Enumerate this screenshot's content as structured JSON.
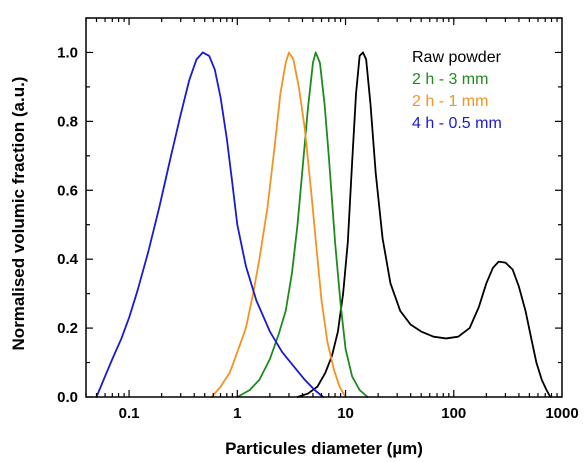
{
  "chart_data": {
    "type": "line",
    "xlabel": "Particules diameter (µm)",
    "ylabel": "Normalised volumic fraction  (a.u.)",
    "xscale": "log",
    "xlim": [
      0.04,
      1000
    ],
    "ylim": [
      0,
      1.1
    ],
    "x_ticks": [
      {
        "value": 0.1,
        "label": "0.1"
      },
      {
        "value": 1,
        "label": "1"
      },
      {
        "value": 10,
        "label": "10"
      },
      {
        "value": 100,
        "label": "100"
      },
      {
        "value": 1000,
        "label": "1000"
      }
    ],
    "y_ticks": [
      {
        "value": 0.0,
        "label": "0.0"
      },
      {
        "value": 0.2,
        "label": "0.2"
      },
      {
        "value": 0.4,
        "label": "0.4"
      },
      {
        "value": 0.6,
        "label": "0.6"
      },
      {
        "value": 0.8,
        "label": "0.8"
      },
      {
        "value": 1.0,
        "label": "1.0"
      }
    ],
    "legend_position": "top-right",
    "grid": false,
    "series": [
      {
        "name": "Raw powder",
        "color": "#000000",
        "points": [
          [
            3.6,
            0.0
          ],
          [
            4.5,
            0.01
          ],
          [
            5.5,
            0.03
          ],
          [
            6.5,
            0.07
          ],
          [
            7.5,
            0.12
          ],
          [
            8.5,
            0.19
          ],
          [
            9.5,
            0.3
          ],
          [
            10.5,
            0.45
          ],
          [
            11.5,
            0.68
          ],
          [
            12.5,
            0.88
          ],
          [
            13.5,
            0.99
          ],
          [
            14.5,
            1.0
          ],
          [
            15.5,
            0.98
          ],
          [
            17,
            0.85
          ],
          [
            19,
            0.65
          ],
          [
            22,
            0.46
          ],
          [
            26,
            0.33
          ],
          [
            32,
            0.25
          ],
          [
            40,
            0.21
          ],
          [
            50,
            0.19
          ],
          [
            65,
            0.175
          ],
          [
            85,
            0.17
          ],
          [
            110,
            0.175
          ],
          [
            140,
            0.2
          ],
          [
            170,
            0.26
          ],
          [
            200,
            0.33
          ],
          [
            230,
            0.375
          ],
          [
            260,
            0.393
          ],
          [
            300,
            0.39
          ],
          [
            350,
            0.37
          ],
          [
            400,
            0.32
          ],
          [
            460,
            0.25
          ],
          [
            520,
            0.17
          ],
          [
            580,
            0.1
          ],
          [
            650,
            0.05
          ],
          [
            720,
            0.02
          ],
          [
            780,
            0.0
          ]
        ]
      },
      {
        "name": "2 h - 3 mm",
        "color": "#1e8a1e",
        "points": [
          [
            1.0,
            0.0
          ],
          [
            1.3,
            0.02
          ],
          [
            1.6,
            0.05
          ],
          [
            2.0,
            0.11
          ],
          [
            2.4,
            0.18
          ],
          [
            2.8,
            0.25
          ],
          [
            3.2,
            0.36
          ],
          [
            3.6,
            0.5
          ],
          [
            4.0,
            0.66
          ],
          [
            4.5,
            0.84
          ],
          [
            5.0,
            0.97
          ],
          [
            5.3,
            1.0
          ],
          [
            5.8,
            0.97
          ],
          [
            6.4,
            0.85
          ],
          [
            7.0,
            0.7
          ],
          [
            8.0,
            0.45
          ],
          [
            9.0,
            0.27
          ],
          [
            10.0,
            0.14
          ],
          [
            11.5,
            0.06
          ],
          [
            13.5,
            0.02
          ],
          [
            16,
            0.0
          ]
        ]
      },
      {
        "name": "2 h - 1 mm",
        "color": "#f39322",
        "points": [
          [
            0.58,
            0.0
          ],
          [
            0.7,
            0.03
          ],
          [
            0.85,
            0.07
          ],
          [
            1.0,
            0.13
          ],
          [
            1.2,
            0.2
          ],
          [
            1.4,
            0.3
          ],
          [
            1.6,
            0.4
          ],
          [
            1.9,
            0.55
          ],
          [
            2.2,
            0.72
          ],
          [
            2.5,
            0.88
          ],
          [
            2.8,
            0.97
          ],
          [
            3.0,
            1.0
          ],
          [
            3.3,
            0.98
          ],
          [
            3.7,
            0.9
          ],
          [
            4.2,
            0.78
          ],
          [
            4.8,
            0.6
          ],
          [
            5.4,
            0.43
          ],
          [
            6.0,
            0.28
          ],
          [
            6.8,
            0.16
          ],
          [
            7.8,
            0.08
          ],
          [
            8.8,
            0.03
          ],
          [
            10,
            0.0
          ]
        ]
      },
      {
        "name": "4 h - 0.5 mm",
        "color": "#1a1ad0",
        "points": [
          [
            0.05,
            0.0
          ],
          [
            0.06,
            0.06
          ],
          [
            0.07,
            0.11
          ],
          [
            0.085,
            0.17
          ],
          [
            0.1,
            0.23
          ],
          [
            0.12,
            0.31
          ],
          [
            0.15,
            0.42
          ],
          [
            0.19,
            0.55
          ],
          [
            0.24,
            0.69
          ],
          [
            0.3,
            0.82
          ],
          [
            0.36,
            0.92
          ],
          [
            0.42,
            0.98
          ],
          [
            0.48,
            1.0
          ],
          [
            0.55,
            0.99
          ],
          [
            0.62,
            0.95
          ],
          [
            0.7,
            0.87
          ],
          [
            0.8,
            0.75
          ],
          [
            0.9,
            0.62
          ],
          [
            1.0,
            0.5
          ],
          [
            1.2,
            0.38
          ],
          [
            1.5,
            0.28
          ],
          [
            2.0,
            0.19
          ],
          [
            2.6,
            0.13
          ],
          [
            3.3,
            0.09
          ],
          [
            4.2,
            0.05
          ],
          [
            5.2,
            0.02
          ],
          [
            6.2,
            0.0
          ]
        ]
      }
    ]
  }
}
